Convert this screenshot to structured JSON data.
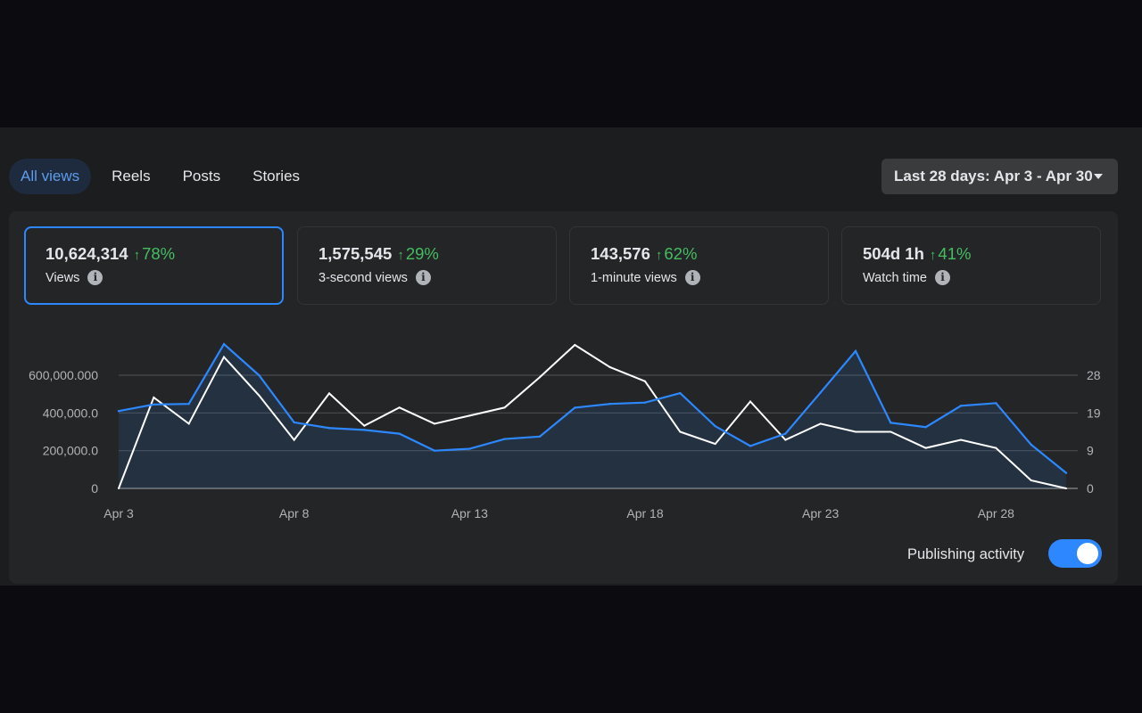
{
  "tabs": [
    "All views",
    "Reels",
    "Posts",
    "Stories"
  ],
  "active_tab": "All views",
  "date_range": "Last 28 days: Apr 3 - Apr 30",
  "metrics": [
    {
      "value": "10,624,314",
      "change": "78%",
      "label": "Views"
    },
    {
      "value": "1,575,545",
      "change": "29%",
      "label": "3-second views"
    },
    {
      "value": "143,576",
      "change": "62%",
      "label": "1-minute views"
    },
    {
      "value": "504d 1h",
      "change": "41%",
      "label": "Watch time"
    }
  ],
  "publishing_activity": {
    "label": "Publishing activity",
    "enabled": true
  },
  "colors": {
    "primary_series": "#2d88ff",
    "secondary_series": "#ffffff",
    "positive": "#45bd62"
  },
  "chart_data": {
    "type": "line",
    "x": [
      "Apr 3",
      "Apr 4",
      "Apr 5",
      "Apr 6",
      "Apr 7",
      "Apr 8",
      "Apr 9",
      "Apr 10",
      "Apr 11",
      "Apr 12",
      "Apr 13",
      "Apr 14",
      "Apr 15",
      "Apr 16",
      "Apr 17",
      "Apr 18",
      "Apr 19",
      "Apr 20",
      "Apr 21",
      "Apr 22",
      "Apr 23",
      "Apr 24",
      "Apr 25",
      "Apr 26",
      "Apr 27",
      "Apr 28",
      "Apr 29",
      "Apr 30"
    ],
    "x_tick_labels": [
      "Apr 3",
      "Apr 8",
      "Apr 13",
      "Apr 18",
      "Apr 23",
      "Apr 28"
    ],
    "y_left_ticks": [
      "0",
      "200,000.0",
      "400,000.0",
      "600,000.000"
    ],
    "y_left_range": [
      0,
      600000
    ],
    "y_right_ticks": [
      "0",
      "9",
      "19",
      "28"
    ],
    "y_right_range": [
      0,
      28
    ],
    "area": true,
    "series": [
      {
        "axis": "left",
        "values": [
          410000,
          445000,
          448000,
          765000,
          600000,
          350000,
          320000,
          310000,
          290000,
          200000,
          210000,
          262000,
          275000,
          428000,
          448000,
          455000,
          505000,
          330000,
          225000,
          290000,
          508000,
          728000,
          348000,
          325000,
          438000,
          452000,
          232000,
          82000
        ]
      },
      {
        "axis": "right",
        "values": [
          0,
          22.5,
          16,
          32.5,
          23,
          12,
          23.5,
          15.5,
          20,
          16,
          18,
          20,
          27.5,
          35.5,
          30,
          26.5,
          14,
          11,
          21.5,
          12,
          16,
          14,
          14,
          10,
          12,
          10,
          2,
          0
        ]
      }
    ]
  }
}
